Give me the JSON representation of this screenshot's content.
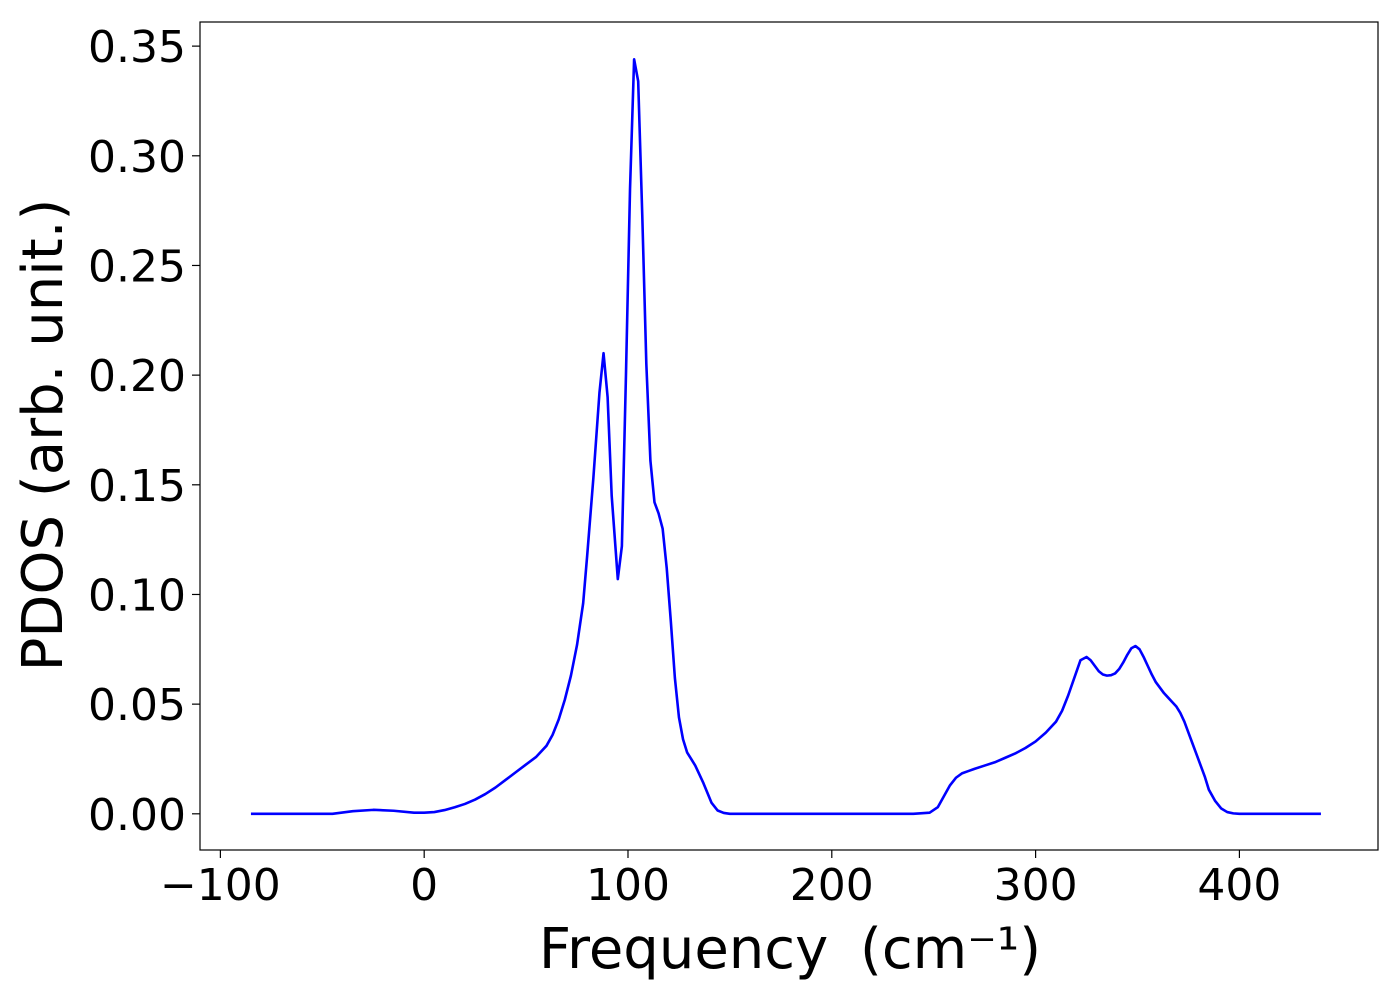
{
  "chart_data": {
    "type": "line",
    "title": "",
    "xlabel": "Frequency",
    "xlabel_unit": "(cm⁻¹)",
    "ylabel": "PDOS (arb. unit.)",
    "xlim": [
      -110,
      468
    ],
    "ylim": [
      -0.0165,
      0.361
    ],
    "xticks": [
      -100,
      0,
      100,
      200,
      300,
      400
    ],
    "xtick_labels": [
      "−100",
      "0",
      "100",
      "200",
      "300",
      "400"
    ],
    "yticks": [
      0.0,
      0.05,
      0.1,
      0.15,
      0.2,
      0.25,
      0.3,
      0.35
    ],
    "ytick_labels": [
      "0.00",
      "0.05",
      "0.10",
      "0.15",
      "0.20",
      "0.25",
      "0.30",
      "0.35"
    ],
    "grid": false,
    "line_color": "#0000ff",
    "series": [
      {
        "x": [
          -85,
          -60,
          -45,
          -35,
          -25,
          -15,
          -5,
          0,
          5,
          10,
          15,
          20,
          25,
          30,
          35,
          40,
          45,
          50,
          55,
          60,
          63,
          66,
          69,
          72,
          75,
          78,
          80,
          83,
          86,
          88,
          90,
          92,
          95,
          97,
          99,
          101,
          103,
          105,
          107,
          109,
          111,
          113,
          115,
          117,
          119,
          121,
          123,
          125,
          127,
          129,
          131,
          133,
          135,
          137,
          139,
          141,
          144,
          147,
          150,
          153,
          156,
          159,
          162,
          165,
          170,
          180,
          200,
          220,
          240,
          248,
          252,
          255,
          258,
          261,
          264,
          267,
          270,
          275,
          280,
          285,
          290,
          295,
          300,
          305,
          310,
          313,
          316,
          319,
          322,
          325,
          327,
          329,
          331,
          333,
          335,
          337,
          339,
          341,
          343,
          345,
          347,
          349,
          351,
          353,
          355,
          357,
          359,
          361,
          363,
          365,
          367,
          369,
          371,
          373,
          375,
          377,
          379,
          381,
          383,
          385,
          388,
          391,
          394,
          397,
          400,
          402,
          404,
          406,
          410,
          420,
          440
        ],
        "y": [
          0.0,
          0.0,
          0.0,
          0.0012,
          0.0018,
          0.0014,
          0.0005,
          0.0005,
          0.0008,
          0.0017,
          0.003,
          0.0045,
          0.0065,
          0.009,
          0.012,
          0.0155,
          0.019,
          0.0225,
          0.026,
          0.031,
          0.036,
          0.043,
          0.052,
          0.063,
          0.077,
          0.096,
          0.118,
          0.153,
          0.192,
          0.21,
          0.19,
          0.145,
          0.107,
          0.122,
          0.2,
          0.285,
          0.344,
          0.334,
          0.273,
          0.205,
          0.161,
          0.142,
          0.137,
          0.13,
          0.112,
          0.088,
          0.062,
          0.044,
          0.034,
          0.028,
          0.025,
          0.022,
          0.018,
          0.014,
          0.0095,
          0.005,
          0.0015,
          0.0004,
          0.0,
          0.0,
          0.0,
          0.0,
          0.0,
          0.0,
          0.0,
          0.0,
          0.0,
          0.0,
          0.0,
          0.0005,
          0.003,
          0.008,
          0.013,
          0.0165,
          0.0185,
          0.0195,
          0.0205,
          0.022,
          0.0235,
          0.0255,
          0.0275,
          0.03,
          0.033,
          0.037,
          0.042,
          0.047,
          0.054,
          0.062,
          0.07,
          0.0715,
          0.07,
          0.0675,
          0.065,
          0.0635,
          0.063,
          0.0632,
          0.064,
          0.066,
          0.069,
          0.0725,
          0.0755,
          0.0765,
          0.075,
          0.0715,
          0.0675,
          0.0635,
          0.06,
          0.0575,
          0.055,
          0.053,
          0.051,
          0.049,
          0.046,
          0.042,
          0.037,
          0.032,
          0.027,
          0.022,
          0.017,
          0.011,
          0.006,
          0.0025,
          0.0008,
          0.0002,
          0.0,
          0.0,
          0.0,
          0.0,
          0.0,
          0.0,
          0.0
        ]
      }
    ]
  }
}
